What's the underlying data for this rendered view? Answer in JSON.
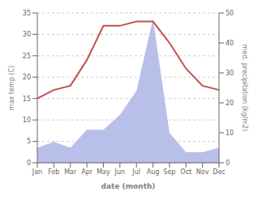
{
  "chart_data": {
    "type": "line",
    "categories": [
      "Jan",
      "Feb",
      "Mar",
      "Apr",
      "May",
      "Jun",
      "Jul",
      "Aug",
      "Sep",
      "Oct",
      "Nov",
      "Dec"
    ],
    "xlabel": "date (month)",
    "ylabel": "max temp (C)",
    "y2label": "med. precipitation (kg/m2)",
    "series": [
      {
        "type": "area",
        "color": "#b8bfe8",
        "axis": "y2",
        "values": [
          5,
          7,
          5,
          11,
          11,
          16,
          24,
          48,
          10,
          3.5,
          3.5,
          5
        ]
      },
      {
        "type": "line",
        "color": "#c0504d",
        "values": [
          15,
          17,
          18,
          24,
          32,
          32,
          33,
          33,
          28,
          22,
          18,
          17
        ]
      }
    ],
    "ylim": [
      0,
      35
    ],
    "yticks": [
      0,
      5,
      10,
      15,
      20,
      25,
      30,
      35
    ],
    "y2lim": [
      0,
      50
    ],
    "y2ticks": [
      0,
      10,
      20,
      30,
      40,
      50
    ],
    "grid": true
  }
}
